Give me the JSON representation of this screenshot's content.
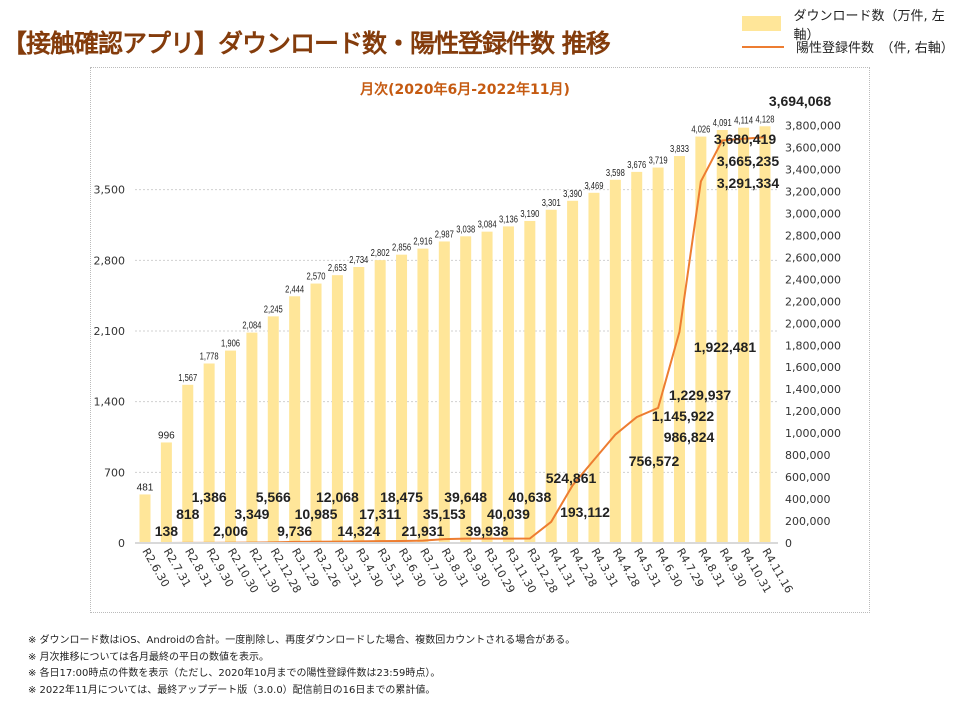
{
  "title": "【接触確認アプリ】ダウンロード数・陽性登録件数 推移",
  "chart_data": {
    "type": "bar+line",
    "subtitle": "月次(2020年6月-2022年11月)",
    "categories": [
      "R2.6.30",
      "R2.7.31",
      "R2.8.31",
      "R2.9.30",
      "R2.10.30",
      "R2.11.30",
      "R2.12.28",
      "R3.1.29",
      "R3.2.26",
      "R3.3.31",
      "R3.4.30",
      "R3.5.31",
      "R3.6.30",
      "R3.7.30",
      "R3.8.31",
      "R3.9.30",
      "R3.10.29",
      "R3.11.30",
      "R3.12.28",
      "R4.1.31",
      "R4.2.28",
      "R4.3.31",
      "R4.4.28",
      "R4.5.31",
      "R4.6.30",
      "R4.7.29",
      "R4.8.31",
      "R4.9.30",
      "R4.10.31",
      "R4.11.16"
    ],
    "series": [
      {
        "name": "ダウンロード数（万件, 左軸）",
        "type": "bar",
        "axis": "left",
        "color": "#ffe699",
        "values": [
          481,
          996,
          1567,
          1778,
          1906,
          2084,
          2245,
          2444,
          2570,
          2653,
          2734,
          2802,
          2856,
          2916,
          2987,
          3038,
          3084,
          3136,
          3190,
          3301,
          3390,
          3469,
          3598,
          3676,
          3719,
          3833,
          4026,
          4091,
          4114,
          4128
        ]
      },
      {
        "name": "陽性登録件数　（件, 右軸）",
        "type": "line",
        "axis": "right",
        "color": "#ed7d31",
        "values": [
          138,
          818,
          1386,
          2006,
          3349,
          5566,
          9736,
          10985,
          12068,
          14324,
          17311,
          18475,
          21931,
          35153,
          39648,
          39938,
          40039,
          40638,
          null,
          193112,
          524861,
          756572,
          986824,
          1145922,
          1229937,
          1922481,
          3291334,
          3665235,
          3680419,
          3694068
        ]
      }
    ],
    "left_axis": {
      "ylim": [
        0,
        4200
      ],
      "ticks": [
        0,
        700,
        1400,
        2100,
        2800,
        3500
      ]
    },
    "right_axis": {
      "ylim": [
        0,
        3860000
      ],
      "ticks": [
        0,
        200000,
        400000,
        600000,
        800000,
        1000000,
        1200000,
        1400000,
        1600000,
        1800000,
        2000000,
        2200000,
        2400000,
        2600000,
        2800000,
        3000000,
        3200000,
        3400000,
        3600000,
        3800000
      ]
    },
    "grid": "horizontal dotted at left-axis ticks",
    "legend": "top-right"
  },
  "notes": [
    "※ ダウンロード数はiOS、Androidの合計。一度削除し、再度ダウンロードした場合、複数回カウントされる場合がある。",
    "※ 月次推移については各月最終の平日の数値を表示。",
    "※ 各日17:00時点の件数を表示（ただし、2020年10月までの陽性登録件数は23:59時点）。",
    "※ 2022年11月については、最終アップデート版（3.0.0）配信前日の16日までの累計値。"
  ]
}
